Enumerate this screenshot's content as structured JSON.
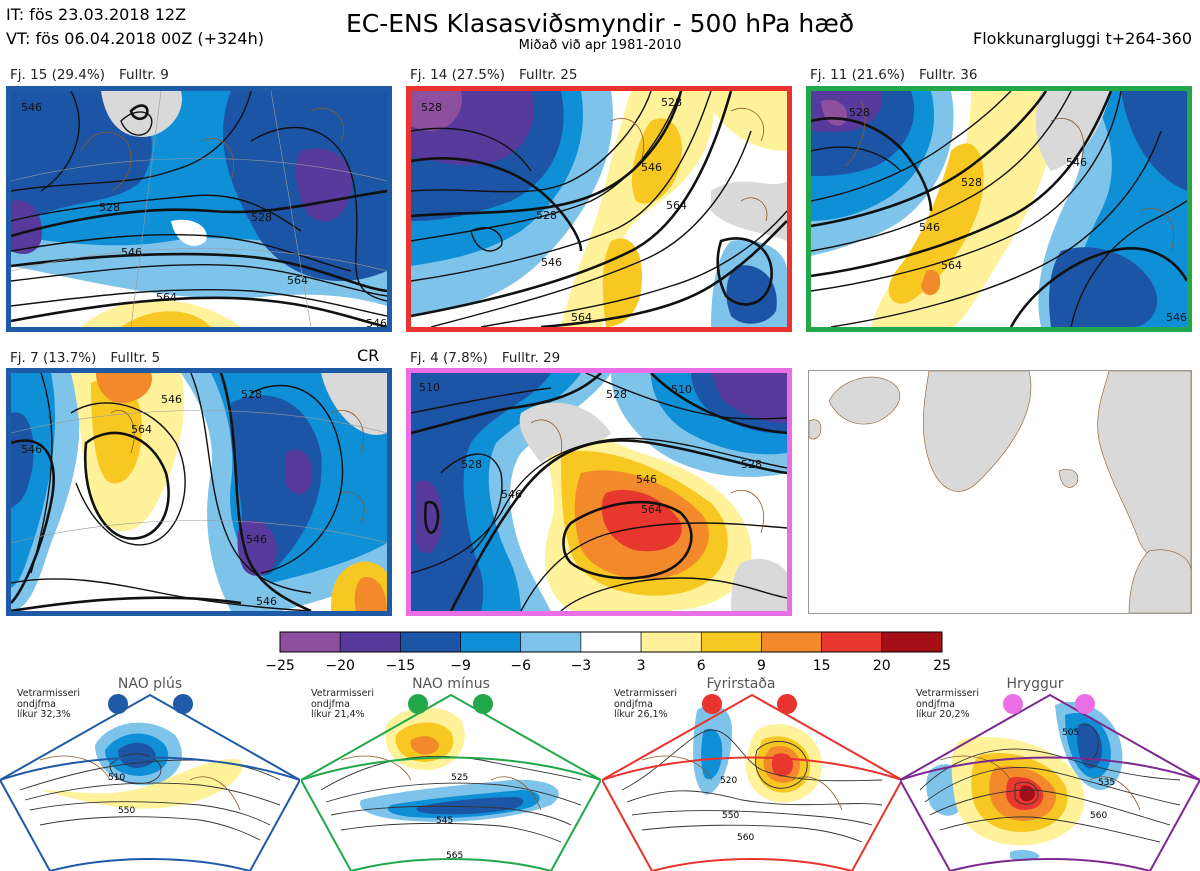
{
  "header": {
    "it": "IT: fös 23.03.2018 12Z",
    "vt": "VT: fös 06.04.2018 00Z  (+324h)",
    "title": "EC-ENS Klasasviðsmyndir - 500 hPa hæð",
    "subtitle": "Miðað við apr 1981-2010",
    "window": "Flokkunargluggi t+264-360"
  },
  "colors": {
    "neg25": "#8e4f9e",
    "neg20": "#573a9c",
    "neg15": "#1d55a6",
    "neg9": "#0f8fd6",
    "neg6": "#7ec3ea",
    "zero": "#ffffff",
    "pos3": "#fff29a",
    "pos6": "#f8c822",
    "pos9": "#f28a2c",
    "pos15": "#e8372e",
    "pos20": "#a70f18",
    "land": "#d9d9d9",
    "coast": "#8b5a2b",
    "contour": "#111111",
    "blue_frame": "#1f5aa6",
    "red_frame": "#e8332f",
    "green_frame": "#22a84a",
    "magenta_frame": "#e86fe6",
    "purple_frame": "#7b2a8f"
  },
  "panels": [
    {
      "id": "Fj. 15 (29.4%)",
      "members": "Fulltr.  9",
      "contours": [
        "546",
        "528",
        "528",
        "546",
        "564",
        "564",
        "546"
      ]
    },
    {
      "id": "Fj. 14 (27.5%)",
      "members": "Fulltr. 25",
      "contours": [
        "528",
        "528",
        "546",
        "528",
        "546",
        "564",
        "564"
      ]
    },
    {
      "id": "Fj. 11 (21.6%)",
      "members": "Fulltr. 36",
      "contours": [
        "528",
        "528",
        "546",
        "546",
        "564",
        "546"
      ]
    },
    {
      "id": "Fj. 7 (13.7%)",
      "members": "Fulltr.  5",
      "contours": [
        "546",
        "528",
        "546",
        "564",
        "546",
        "546"
      ]
    },
    {
      "id": "Fj. 4 (7.8%)",
      "members": "Fulltr. 29",
      "contours": [
        "510",
        "528",
        "510",
        "528",
        "546",
        "528",
        "546",
        "564"
      ]
    }
  ],
  "cr_label": "CR",
  "chart_data": {
    "type": "heatmap",
    "title": "EC-ENS Klasasviðsmyndir - 500 hPa hæð",
    "colorbar": {
      "ticks": [
        "−25",
        "−20",
        "−15",
        "−9",
        "−6",
        "−3",
        "3",
        "6",
        "9",
        "15",
        "20",
        "25"
      ],
      "boundaries": [
        -25,
        -20,
        -15,
        -9,
        -6,
        -3,
        3,
        6,
        9,
        15,
        20,
        25
      ]
    },
    "regimes": [
      {
        "name": "NAO plús",
        "note1": "Vetrarmisseri",
        "note2": "ondjfma",
        "note3": "líkur 32,3%",
        "contours": [
          "510",
          "550"
        ]
      },
      {
        "name": "NAO mínus",
        "note1": "Vetrarmisseri",
        "note2": "ondjfma",
        "note3": "líkur 21,4%",
        "contours": [
          "525",
          "545",
          "565"
        ]
      },
      {
        "name": "Fyrirstaða",
        "note1": "Vetrarmisseri",
        "note2": "ondjfma",
        "note3": "líkur 26,1%",
        "contours": [
          "520",
          "550",
          "560"
        ]
      },
      {
        "name": "Hryggur",
        "note1": "Vetrarmisseri",
        "note2": "ondjfma",
        "note3": "líkur 20,2%",
        "contours": [
          "505",
          "535",
          "560"
        ]
      }
    ]
  }
}
